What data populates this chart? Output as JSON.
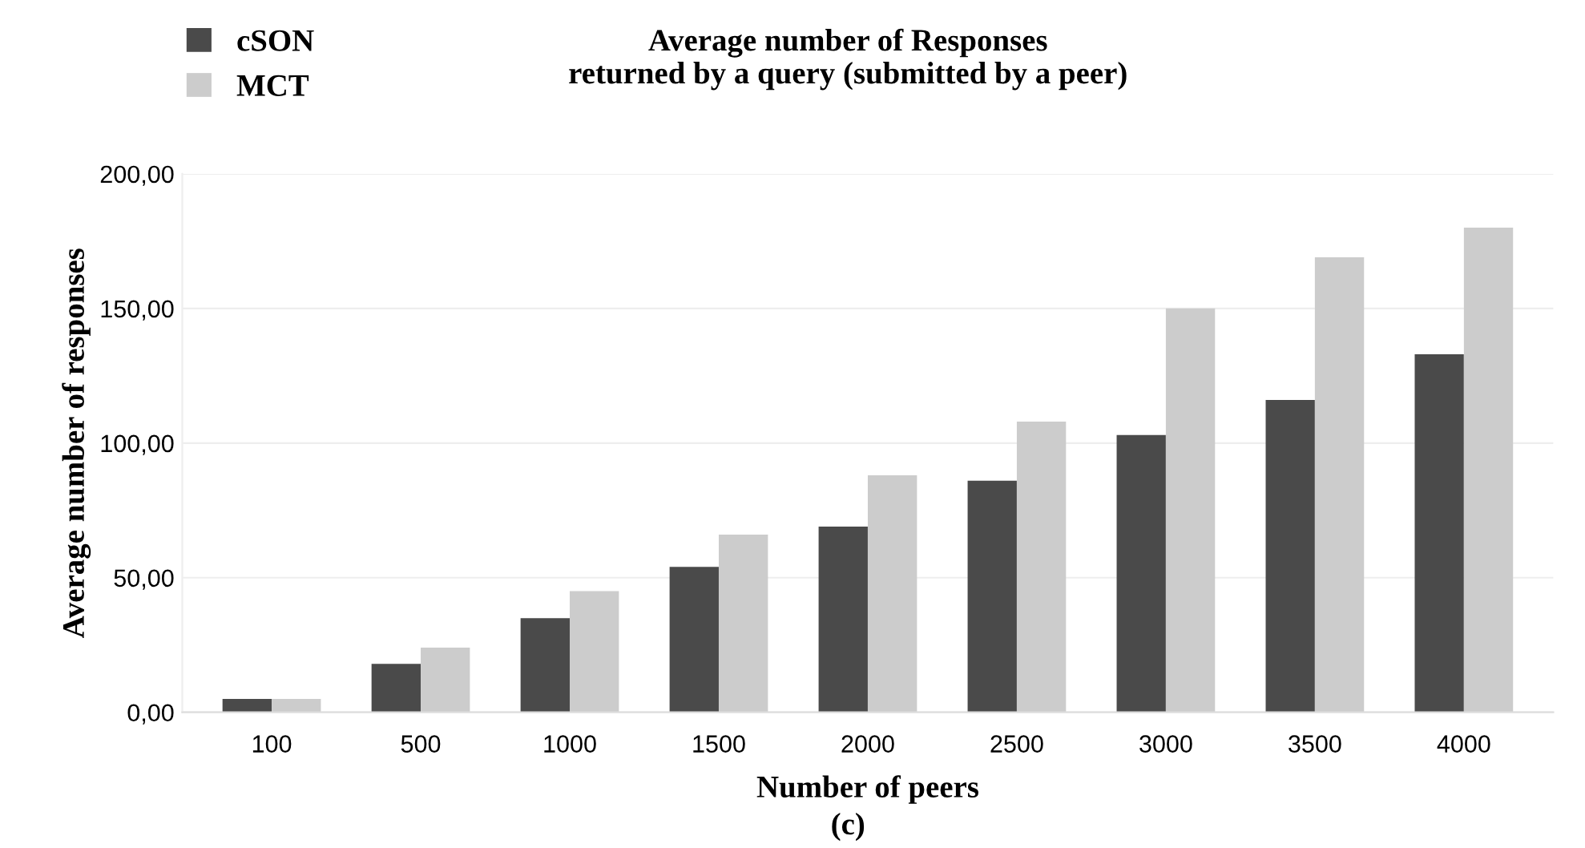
{
  "chart_data": {
    "type": "bar",
    "title": "Average number of Responses\nreturned by a query (submitted by a peer)",
    "xlabel": "Number of peers",
    "ylabel": "Average number of responses",
    "categories": [
      "100",
      "500",
      "1000",
      "1500",
      "2000",
      "2500",
      "3000",
      "3500",
      "4000"
    ],
    "series": [
      {
        "name": "cSON",
        "color": "#4a4a4a",
        "values": [
          5,
          18,
          35,
          54,
          69,
          86,
          103,
          116,
          133
        ]
      },
      {
        "name": "MCT",
        "color": "#cccccc",
        "values": [
          5,
          24,
          45,
          66,
          88,
          108,
          150,
          169,
          180
        ]
      }
    ],
    "ylim": [
      0,
      200
    ],
    "yticks": [
      {
        "value": 0,
        "label": "0,00"
      },
      {
        "value": 50,
        "label": "50,00"
      },
      {
        "value": 100,
        "label": "100,00"
      },
      {
        "value": 150,
        "label": "150,00"
      },
      {
        "value": 200,
        "label": "200,00"
      }
    ],
    "grid": "y",
    "legend": "top left",
    "annotations": [
      "(c)"
    ]
  }
}
